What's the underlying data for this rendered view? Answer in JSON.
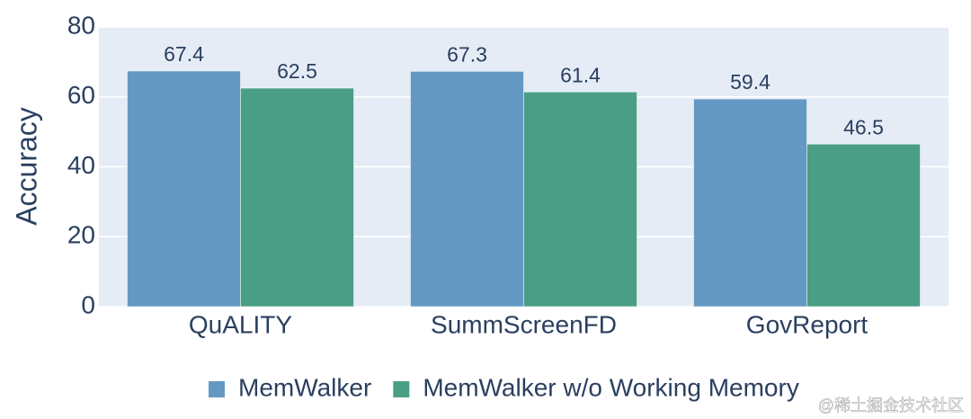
{
  "chart_data": {
    "type": "bar",
    "y_label": "Accuracy",
    "categories": [
      "QuALITY",
      "SummScreenFD",
      "GovReport"
    ],
    "series": [
      {
        "name": "MemWalker",
        "color": "#6399c3",
        "values": [
          67.4,
          67.3,
          59.4
        ]
      },
      {
        "name": "MemWalker w/o Working Memory",
        "color": "#4a9e86",
        "values": [
          62.5,
          61.4,
          46.5
        ]
      }
    ],
    "ylim": [
      0,
      80
    ],
    "yticks": [
      0,
      20,
      40,
      60,
      80
    ],
    "grid": true,
    "legend": "bottom",
    "watermark": "@稀土掘金技术社区"
  }
}
